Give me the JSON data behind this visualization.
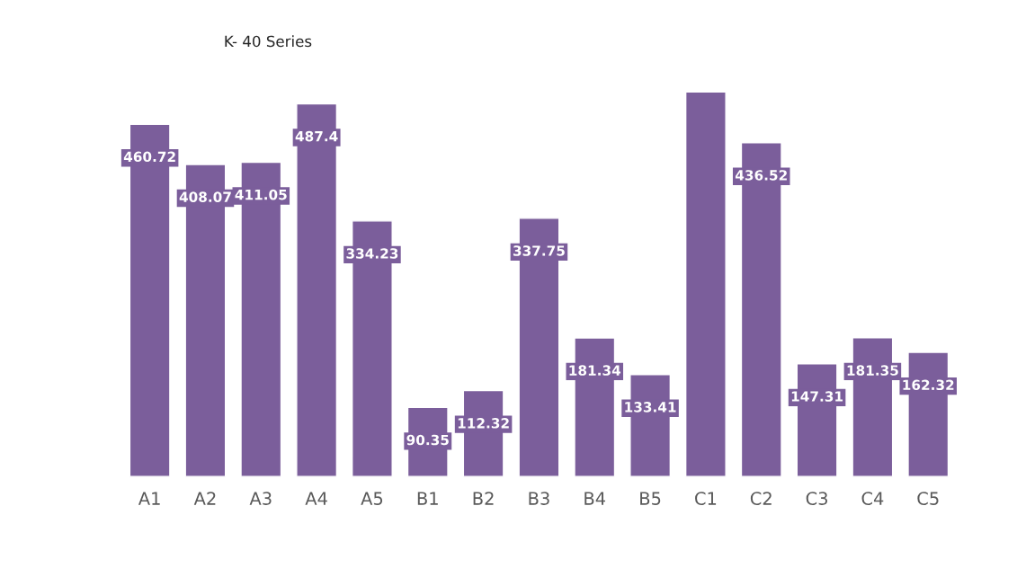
{
  "chart_data": {
    "type": "bar",
    "title": "K- 40 Series",
    "categories": [
      "A1",
      "A2",
      "A3",
      "A4",
      "A5",
      "B1",
      "B2",
      "B3",
      "B4",
      "B5",
      "C1",
      "C2",
      "C3",
      "C4",
      "C5"
    ],
    "values": [
      460.72,
      408.07,
      411.05,
      487.4,
      334.23,
      90.35,
      112.32,
      337.75,
      181.34,
      133.41,
      503,
      436.52,
      147.31,
      181.35,
      162.32
    ],
    "value_labels": [
      "460.72",
      "408.07",
      "411.05",
      "487.4",
      "334.23",
      "90.35",
      "112.32",
      "337.75",
      "181.34",
      "133.41",
      null,
      "436.52",
      "147.31",
      "181.35",
      "162.32"
    ],
    "color": "#7b5e9b",
    "grid": false,
    "legend": false
  }
}
